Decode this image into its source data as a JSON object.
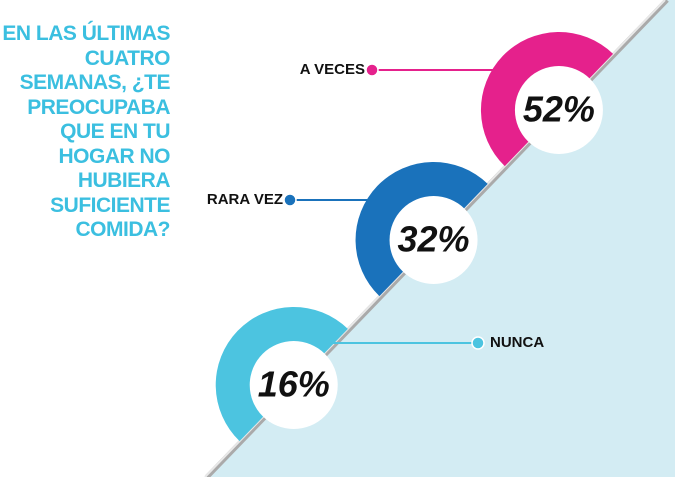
{
  "chart_data": {
    "type": "donut",
    "title": "EN LAS ÚLTIMAS CUATRO SEMANAS, ¿TE PREOCUPABA QUE EN TU HOGAR NO HUBIERA SUFICIENTE COMIDA?",
    "categories": [
      "A VECES",
      "RARA VEZ",
      "NUNCA"
    ],
    "values": [
      52,
      32,
      16
    ],
    "value_labels": [
      "52%",
      "32%",
      "16%"
    ],
    "colors": [
      "#e5218c",
      "#1a72bb",
      "#4cc4e0"
    ]
  }
}
